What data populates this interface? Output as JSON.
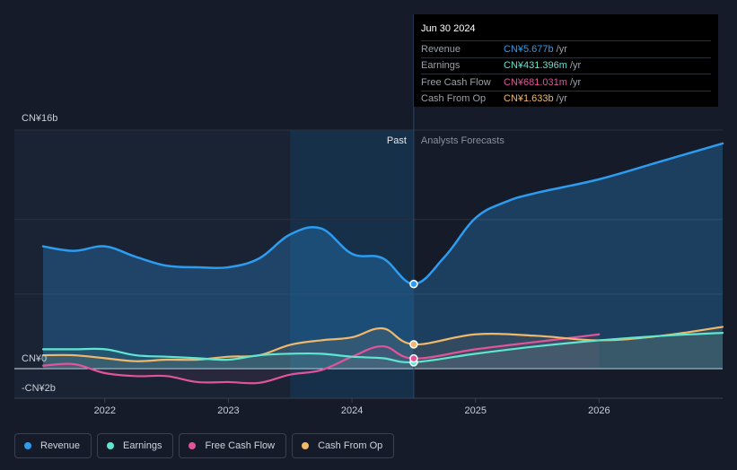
{
  "tooltip": {
    "date": "Jun 30 2024",
    "rows": [
      {
        "label": "Revenue",
        "value": "CN¥5.677b",
        "unit": "/yr",
        "color": "#2d9cf0"
      },
      {
        "label": "Earnings",
        "value": "CN¥431.396m",
        "unit": "/yr",
        "color": "#5ee6d0"
      },
      {
        "label": "Free Cash Flow",
        "value": "CN¥681.031m",
        "unit": "/yr",
        "color": "#e0559a"
      },
      {
        "label": "Cash From Op",
        "value": "CN¥1.633b",
        "unit": "/yr",
        "color": "#f0b86a"
      }
    ]
  },
  "zones": {
    "past": "Past",
    "forecast": "Analysts Forecasts"
  },
  "legend": [
    {
      "label": "Revenue",
      "color": "#2d9cf0"
    },
    {
      "label": "Earnings",
      "color": "#5ee6d0"
    },
    {
      "label": "Free Cash Flow",
      "color": "#e0559a"
    },
    {
      "label": "Cash From Op",
      "color": "#f0b86a"
    }
  ],
  "chart_data": {
    "type": "line",
    "title": "",
    "xlabel": "",
    "ylabel": "",
    "x_ticks": [
      "2022",
      "2023",
      "2024",
      "2025",
      "2026"
    ],
    "y_tick_labels": [
      {
        "value": 16,
        "label": "CN¥16b"
      },
      {
        "value": 0,
        "label": "CN¥0"
      },
      {
        "value": -2,
        "label": "-CN¥2b"
      }
    ],
    "ylim": [
      -2,
      16
    ],
    "xlim": [
      2021.5,
      2027.0
    ],
    "past_end": 2024.5,
    "highlight_start": 2023.5,
    "highlight_x": 2024.5,
    "series": [
      {
        "name": "Revenue",
        "color": "#2d9cf0",
        "points": [
          [
            2021.5,
            8.2
          ],
          [
            2021.75,
            7.9
          ],
          [
            2022.0,
            8.2
          ],
          [
            2022.25,
            7.5
          ],
          [
            2022.5,
            6.9
          ],
          [
            2022.75,
            6.8
          ],
          [
            2023.0,
            6.8
          ],
          [
            2023.25,
            7.4
          ],
          [
            2023.5,
            9.0
          ],
          [
            2023.75,
            9.4
          ],
          [
            2024.0,
            7.7
          ],
          [
            2024.25,
            7.4
          ],
          [
            2024.5,
            5.677
          ],
          [
            2024.75,
            7.5
          ],
          [
            2025.0,
            10.1
          ],
          [
            2025.25,
            11.2
          ],
          [
            2025.5,
            11.8
          ],
          [
            2026.0,
            12.7
          ],
          [
            2026.5,
            13.9
          ],
          [
            2027.0,
            15.1
          ]
        ]
      },
      {
        "name": "Earnings",
        "color": "#5ee6d0",
        "points": [
          [
            2021.5,
            1.3
          ],
          [
            2021.75,
            1.3
          ],
          [
            2022.0,
            1.3
          ],
          [
            2022.25,
            0.9
          ],
          [
            2022.5,
            0.8
          ],
          [
            2022.75,
            0.7
          ],
          [
            2023.0,
            0.6
          ],
          [
            2023.25,
            0.9
          ],
          [
            2023.5,
            1.0
          ],
          [
            2023.75,
            1.0
          ],
          [
            2024.0,
            0.8
          ],
          [
            2024.25,
            0.7
          ],
          [
            2024.5,
            0.431
          ],
          [
            2025.0,
            1.0
          ],
          [
            2025.5,
            1.5
          ],
          [
            2026.0,
            1.9
          ],
          [
            2026.5,
            2.2
          ],
          [
            2027.0,
            2.4
          ]
        ]
      },
      {
        "name": "Free Cash Flow",
        "color": "#e0559a",
        "points": [
          [
            2021.5,
            0.2
          ],
          [
            2021.75,
            0.3
          ],
          [
            2022.0,
            -0.3
          ],
          [
            2022.25,
            -0.5
          ],
          [
            2022.5,
            -0.5
          ],
          [
            2022.75,
            -0.9
          ],
          [
            2023.0,
            -0.9
          ],
          [
            2023.25,
            -0.95
          ],
          [
            2023.5,
            -0.4
          ],
          [
            2023.75,
            -0.1
          ],
          [
            2024.0,
            0.8
          ],
          [
            2024.25,
            1.5
          ],
          [
            2024.5,
            0.681
          ],
          [
            2025.0,
            1.3
          ],
          [
            2025.5,
            1.8
          ],
          [
            2026.0,
            2.3
          ]
        ]
      },
      {
        "name": "Cash From Op",
        "color": "#f0b86a",
        "points": [
          [
            2021.5,
            0.9
          ],
          [
            2021.75,
            0.9
          ],
          [
            2022.0,
            0.7
          ],
          [
            2022.25,
            0.5
          ],
          [
            2022.5,
            0.6
          ],
          [
            2022.75,
            0.6
          ],
          [
            2023.0,
            0.8
          ],
          [
            2023.25,
            0.9
          ],
          [
            2023.5,
            1.6
          ],
          [
            2023.75,
            1.9
          ],
          [
            2024.0,
            2.1
          ],
          [
            2024.25,
            2.7
          ],
          [
            2024.5,
            1.633
          ],
          [
            2025.0,
            2.3
          ],
          [
            2025.5,
            2.2
          ],
          [
            2026.0,
            1.9
          ],
          [
            2026.5,
            2.2
          ],
          [
            2027.0,
            2.8
          ]
        ]
      }
    ]
  }
}
